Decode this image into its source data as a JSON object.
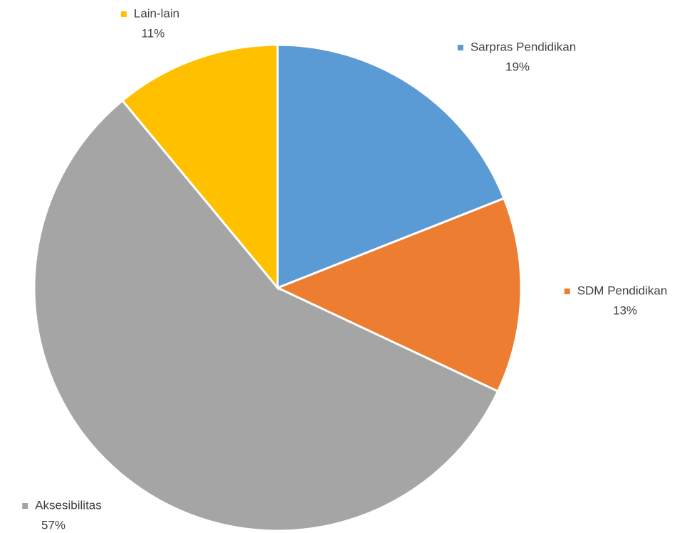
{
  "chart_data": {
    "type": "pie",
    "categories": [
      "Sarpras Pendidikan",
      "SDM Pendidikan",
      "Aksesibilitas",
      "Lain-lain"
    ],
    "values": [
      19,
      13,
      57,
      11
    ],
    "value_labels": [
      "19%",
      "13%",
      "57%",
      "11%"
    ],
    "colors": [
      "#5b9bd5",
      "#ed7d31",
      "#a5a5a5",
      "#ffc000"
    ]
  }
}
